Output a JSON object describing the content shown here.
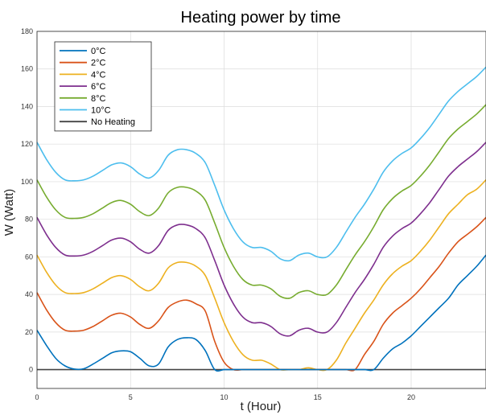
{
  "chart_data": {
    "type": "line",
    "title": "Heating power by time",
    "xlabel": "t (Hour)",
    "ylabel": "W (Watt)",
    "xlim": [
      0,
      24
    ],
    "ylim": [
      -10,
      180
    ],
    "xticks": [
      0,
      5,
      10,
      15,
      20
    ],
    "yticks": [
      0,
      20,
      40,
      60,
      80,
      100,
      120,
      140,
      160,
      180
    ],
    "grid": true,
    "legend_position": "top-left",
    "x": [
      0,
      0.5,
      1,
      1.5,
      2,
      2.5,
      3,
      3.5,
      4,
      4.5,
      5,
      5.5,
      6,
      6.5,
      7,
      7.5,
      8,
      8.5,
      9,
      9.5,
      10,
      10.5,
      11,
      11.5,
      12,
      12.5,
      13,
      13.5,
      14,
      14.5,
      15,
      15.5,
      16,
      16.5,
      17,
      17.5,
      18,
      18.5,
      19,
      19.5,
      20,
      20.5,
      21,
      21.5,
      22,
      22.5,
      23,
      23.5,
      24
    ],
    "series": [
      {
        "name": "0°C",
        "color": "#0072BD",
        "values": [
          21,
          13,
          6,
          2,
          0.3,
          0.5,
          3,
          6,
          9,
          10,
          9.5,
          6,
          2,
          3,
          12,
          16,
          17,
          16,
          10,
          0,
          0,
          0,
          0,
          0,
          0,
          0,
          0,
          0,
          0,
          0,
          0,
          0,
          0,
          0,
          0,
          0,
          0,
          6,
          11,
          14,
          18,
          23,
          28,
          33,
          38,
          45,
          50,
          55,
          61
        ]
      },
      {
        "name": "2°C",
        "color": "#D95319",
        "values": [
          41,
          32,
          25,
          21,
          20.5,
          21,
          23,
          26,
          29,
          30,
          28,
          24,
          22,
          26,
          33,
          36,
          37,
          35,
          31,
          15,
          4,
          0,
          0,
          0,
          0,
          0,
          0,
          0,
          0,
          0,
          0,
          0,
          0,
          0,
          0,
          8,
          15,
          24,
          30,
          34,
          38,
          43,
          49,
          55,
          62,
          68,
          72,
          76,
          81
        ]
      },
      {
        "name": "4°C",
        "color": "#EDB120",
        "values": [
          61,
          52,
          45,
          41,
          40.5,
          41,
          43,
          46,
          49,
          50,
          48,
          44,
          42,
          46,
          54,
          57,
          57,
          55,
          50,
          38,
          25,
          15,
          8,
          5,
          5,
          3,
          0,
          0,
          0,
          1,
          0,
          0,
          5,
          14,
          22,
          30,
          37,
          45,
          51,
          55,
          58,
          63,
          69,
          76,
          83,
          88,
          93,
          96,
          101
        ]
      },
      {
        "name": "6°C",
        "color": "#7E2F8E",
        "values": [
          81,
          72,
          65,
          61,
          60.5,
          61,
          63,
          66,
          69,
          70,
          68,
          64,
          62,
          66,
          74,
          77,
          77,
          75,
          70,
          58,
          45,
          35,
          28,
          25,
          25,
          23,
          19,
          18,
          21,
          22,
          20,
          20,
          25,
          33,
          41,
          48,
          56,
          65,
          71,
          75,
          78,
          83,
          89,
          96,
          103,
          108,
          112,
          116,
          121
        ]
      },
      {
        "name": "8°C",
        "color": "#77AC30",
        "values": [
          101,
          92,
          85,
          81,
          80.5,
          81,
          83,
          86,
          89,
          90,
          88,
          84,
          82,
          86,
          94,
          97,
          97,
          95,
          90,
          78,
          65,
          55,
          48,
          45,
          45,
          43,
          39,
          38,
          41,
          42,
          40,
          40,
          45,
          53,
          61,
          68,
          76,
          85,
          91,
          95,
          98,
          103,
          109,
          116,
          123,
          128,
          132,
          136,
          141
        ]
      },
      {
        "name": "10°C",
        "color": "#4DBEEE",
        "values": [
          121,
          112,
          105,
          101,
          100.5,
          101,
          103,
          106,
          109,
          110,
          108,
          104,
          102,
          106,
          114,
          117,
          117,
          115,
          110,
          98,
          85,
          75,
          68,
          65,
          65,
          63,
          59,
          58,
          61,
          62,
          60,
          60,
          65,
          73,
          81,
          88,
          96,
          105,
          111,
          115,
          118,
          123,
          129,
          136,
          143,
          148,
          152,
          156,
          161
        ]
      },
      {
        "name": "No Heating",
        "color": "#444444",
        "values": [
          0,
          0,
          0,
          0,
          0,
          0,
          0,
          0,
          0,
          0,
          0,
          0,
          0,
          0,
          0,
          0,
          0,
          0,
          0,
          0,
          0,
          0,
          0,
          0,
          0,
          0,
          0,
          0,
          0,
          0,
          0,
          0,
          0,
          0,
          0,
          0,
          0,
          0,
          0,
          0,
          0,
          0,
          0,
          0,
          0,
          0,
          0,
          0,
          0
        ]
      }
    ]
  }
}
